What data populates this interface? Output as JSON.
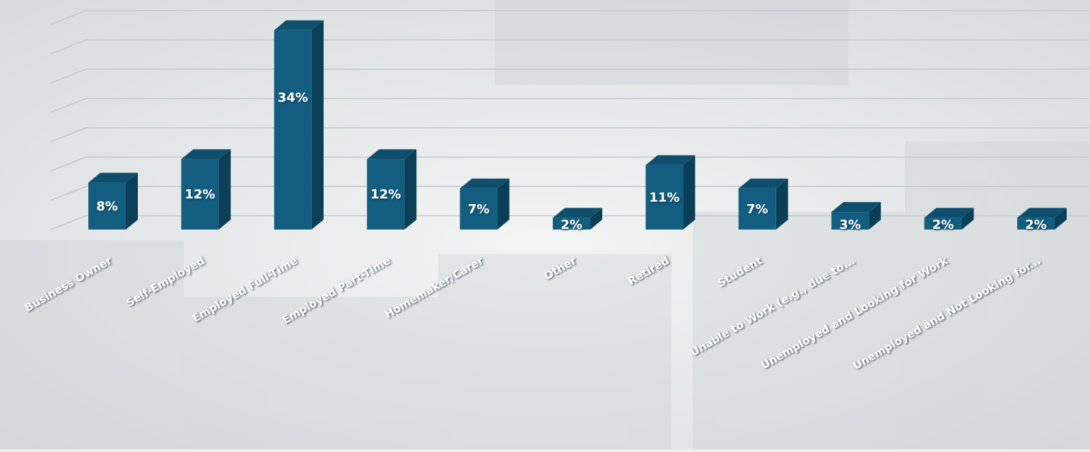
{
  "chart_data": {
    "type": "bar",
    "title": "",
    "xlabel": "",
    "ylabel": "",
    "ylim": [
      0,
      40
    ],
    "grid": true,
    "categories": [
      "Business Owner",
      "Self-Employed",
      "Employed Full-Time",
      "Employed Part-Time",
      "Homemaker/Carer",
      "Other",
      "Retired",
      "Student",
      "Unable to Work (e.g., due to...",
      "Unemployed and Looking for Work",
      "Unemployed and Not Looking for..."
    ],
    "values": [
      8,
      12,
      34,
      12,
      7,
      2,
      11,
      7,
      3,
      2,
      2
    ],
    "value_labels": [
      "8%",
      "12%",
      "34%",
      "12%",
      "7%",
      "2%",
      "11%",
      "7%",
      "3%",
      "2%",
      "2%"
    ]
  },
  "colors": {
    "bar_front": "#135d80",
    "bar_side": "#0b3f58",
    "bar_top": "#0f4f6e",
    "gridline": "#c4c9cb",
    "label_text": "#ffffff",
    "label_shadow": "#0e3346"
  }
}
